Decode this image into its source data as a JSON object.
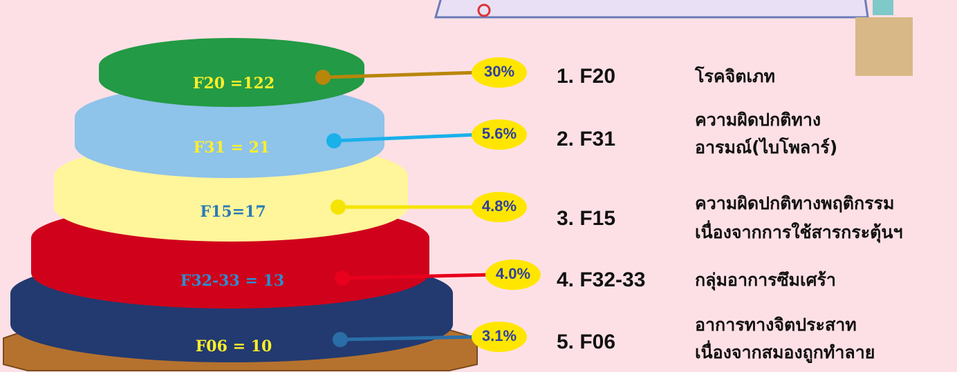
{
  "tiers": [
    {
      "label": "F20 =122",
      "percent": "30%",
      "code": "1. F20",
      "description": [
        "โรคจิตเภท"
      ]
    },
    {
      "label": "F31 = 21",
      "percent": "5.6%",
      "code": "2. F31",
      "description": [
        "ความผิดปกติทาง",
        "อารมณ์(ไบโพลาร์)"
      ]
    },
    {
      "label": "F15=17",
      "percent": "4.8%",
      "code": "3. F15",
      "description": [
        "ความผิดปกติทางพฤติกรรม",
        "เนื่องจากการใช้สารกระตุ้นฯ"
      ]
    },
    {
      "label": "F32-33 = 13",
      "percent": "4.0%",
      "code": "4. F32-33",
      "description": [
        "กลุ่มอาการซึมเศร้า"
      ]
    },
    {
      "label": "F06 = 10",
      "percent": "3.1%",
      "code": "5. F06",
      "description": [
        "อาการทางจิตประสาท",
        "เนื่องจากสมองถูกทำลาย"
      ]
    }
  ]
}
